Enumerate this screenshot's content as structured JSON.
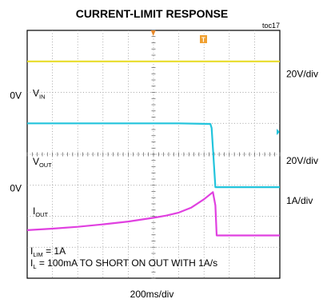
{
  "chart_data": {
    "type": "line",
    "title": "CURRENT-LIMIT RESPONSE",
    "figure_id": "toc17",
    "time_scale": "200ms/div",
    "divisions": {
      "x": 10,
      "y": 8
    },
    "grid": true,
    "trigger_marker": "T",
    "ground_labels": [
      {
        "text": "0V",
        "y_div": 5.9
      },
      {
        "text": "0V",
        "y_div": 2.9
      }
    ],
    "channels": [
      {
        "name": "VIN",
        "label_main": "V",
        "label_sub": "IN",
        "color": "#e8dc2a",
        "scale": "20V/div",
        "scale_y_div": 6.6,
        "label_y_div": 6.0,
        "x_div": [
          0,
          10
        ],
        "y_div": [
          7.0,
          7.0
        ]
      },
      {
        "name": "VOUT",
        "label_main": "V",
        "label_sub": "OUT",
        "color": "#22c4dc",
        "scale": "20V/div",
        "scale_y_div": 3.8,
        "label_y_div": 3.8,
        "x_div": [
          0,
          3,
          6,
          7.25,
          7.3,
          7.45,
          10
        ],
        "y_div": [
          5.0,
          5.0,
          5.0,
          4.98,
          4.85,
          2.94,
          2.94
        ]
      },
      {
        "name": "IOUT",
        "label_main": "I",
        "label_sub": "OUT",
        "color": "#e040e0",
        "scale": "1A/div",
        "scale_y_div": 2.5,
        "label_y_div": 2.2,
        "x_div": [
          0,
          1,
          2,
          3,
          4,
          5,
          5.5,
          6,
          6.5,
          7,
          7.35,
          7.45,
          7.5,
          10
        ],
        "y_div": [
          1.55,
          1.6,
          1.66,
          1.74,
          1.83,
          1.95,
          2.02,
          2.12,
          2.28,
          2.55,
          2.78,
          2.35,
          1.38,
          1.38
        ]
      }
    ],
    "notes": [
      {
        "main": "I",
        "sub": "LIM",
        "rest": " = 1A"
      },
      {
        "main": "I",
        "sub": "L",
        "rest": " = 100mA TO SHORT ON OUT WITH 1A/s"
      }
    ]
  }
}
